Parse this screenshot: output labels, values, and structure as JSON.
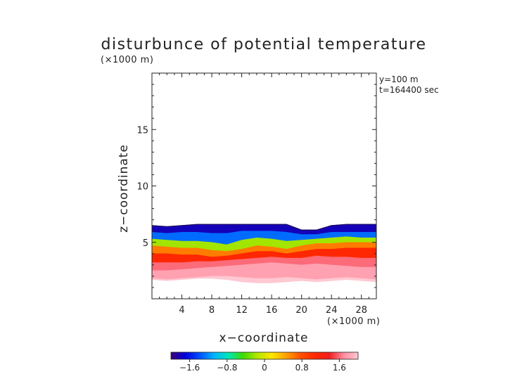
{
  "chart_data": {
    "type": "heatmap",
    "title": "disturbunce of potential temperature",
    "xlabel": "x−coordinate",
    "ylabel": "z−coordinate",
    "x_unit": "(×1000 m)",
    "z_unit": "(×1000 m)",
    "xlim": [
      0,
      30
    ],
    "ylim": [
      0,
      20
    ],
    "x_ticks": [
      4,
      8,
      12,
      16,
      20,
      24,
      28
    ],
    "x_tick_labels": [
      "4",
      "8",
      "12",
      "16",
      "20",
      "24",
      "28"
    ],
    "y_ticks": [
      5,
      10,
      15
    ],
    "y_tick_labels": [
      "5",
      "10",
      "15"
    ],
    "annotations": [
      "y=100 m",
      "t=164400 sec"
    ],
    "colorbar": {
      "range": [
        -2.0,
        2.0
      ],
      "ticks": [
        -1.6,
        -0.8,
        0,
        0.8,
        1.6
      ],
      "tick_labels": [
        "−1.6",
        "−0.8",
        "0",
        "0.8",
        "1.6"
      ],
      "colors": [
        "#3c0078",
        "#0000dc",
        "#0050ff",
        "#00b4ff",
        "#00e6b4",
        "#3cdc00",
        "#b4e600",
        "#ffe600",
        "#ffa000",
        "#ff5000",
        "#ff2800",
        "#f01e1e",
        "#ff8ca0",
        "#ffc8d2"
      ]
    },
    "layers": {
      "x": [
        0,
        2,
        4,
        6,
        8,
        10,
        12,
        14,
        16,
        18,
        20,
        22,
        24,
        26,
        28,
        30
      ],
      "top": [
        6.5,
        6.4,
        6.5,
        6.6,
        6.6,
        6.6,
        6.6,
        6.6,
        6.6,
        6.6,
        6.1,
        6.1,
        6.5,
        6.6,
        6.6,
        6.6
      ],
      "z": [
        [
          6.5,
          6.4,
          6.5,
          6.6,
          6.6,
          6.6,
          6.6,
          6.6,
          6.6,
          6.6,
          6.1,
          6.1,
          6.5,
          6.6,
          6.6,
          6.6
        ],
        [
          5.9,
          5.8,
          5.9,
          5.9,
          5.8,
          5.8,
          6.0,
          6.0,
          6.0,
          5.9,
          5.7,
          5.7,
          5.9,
          5.9,
          5.9,
          5.9
        ],
        [
          5.3,
          5.2,
          5.1,
          5.1,
          5.0,
          4.8,
          5.2,
          5.4,
          5.3,
          5.1,
          5.2,
          5.3,
          5.4,
          5.5,
          5.4,
          5.4
        ],
        [
          4.7,
          4.6,
          4.5,
          4.5,
          4.3,
          4.2,
          4.4,
          4.7,
          4.6,
          4.4,
          4.7,
          4.9,
          4.9,
          5.0,
          5.0,
          5.0
        ],
        [
          4.0,
          4.0,
          3.9,
          3.9,
          3.7,
          3.8,
          4.0,
          4.2,
          4.2,
          4.0,
          4.2,
          4.4,
          4.4,
          4.5,
          4.5,
          4.5
        ],
        [
          3.2,
          3.2,
          3.2,
          3.3,
          3.3,
          3.4,
          3.5,
          3.6,
          3.7,
          3.6,
          3.6,
          3.8,
          3.7,
          3.7,
          3.6,
          3.6
        ],
        [
          2.5,
          2.5,
          2.6,
          2.7,
          2.8,
          2.9,
          3.0,
          3.1,
          3.2,
          3.1,
          3.0,
          3.1,
          3.0,
          2.9,
          2.8,
          2.8
        ],
        [
          1.8,
          1.7,
          1.8,
          1.9,
          2.0,
          2.0,
          1.9,
          1.8,
          1.8,
          1.9,
          1.8,
          1.7,
          1.8,
          1.9,
          1.8,
          1.7
        ],
        [
          1.7,
          1.6,
          1.7,
          1.8,
          1.8,
          1.7,
          1.5,
          1.4,
          1.4,
          1.5,
          1.6,
          1.5,
          1.6,
          1.7,
          1.6,
          1.5
        ]
      ],
      "values": [
        -1.8,
        -1.3,
        -0.2,
        0.6,
        1.1,
        1.6,
        1.8,
        2.0
      ]
    }
  }
}
